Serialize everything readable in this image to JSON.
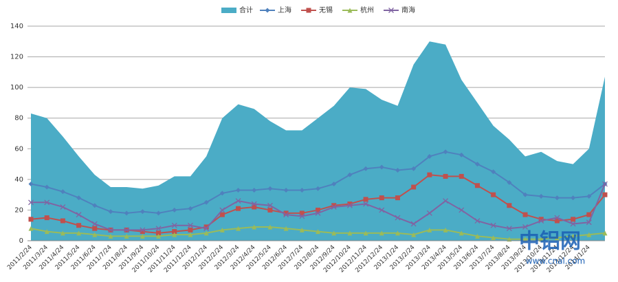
{
  "chart_data": {
    "type": "line",
    "categories": [
      "2011/2/24",
      "2011/3/24",
      "2011/4/24",
      "2011/5/24",
      "2011/6/24",
      "2011/7/24",
      "2011/8/24",
      "2011/9/24",
      "2011/10/24",
      "2011/11/24",
      "2011/12/24",
      "2012/1/24",
      "2012/2/24",
      "2012/3/24",
      "2012/4/24",
      "2012/5/24",
      "2012/6/24",
      "2012/7/24",
      "2012/8/24",
      "2012/9/24",
      "2012/10/24",
      "2012/11/24",
      "2012/12/24",
      "2013/1/24",
      "2013/2/24",
      "2013/3/24",
      "2013/4/24",
      "2013/5/24",
      "2013/6/24",
      "2013/7/24",
      "2013/8/24",
      "2013/9/24",
      "2013/10/24",
      "2013/11/24",
      "2013/12/24",
      "2014/1/24",
      null
    ],
    "series": [
      {
        "name": "合计",
        "kind": "area",
        "color": "#4bacc6",
        "values": [
          83,
          80,
          68,
          55,
          43,
          35,
          35,
          34,
          36,
          42,
          42,
          55,
          80,
          89,
          86,
          78,
          72,
          72,
          80,
          88,
          100,
          99,
          92,
          88,
          115,
          130,
          128,
          105,
          90,
          75,
          66,
          55,
          58,
          52,
          50,
          60,
          107
        ]
      },
      {
        "name": "上海",
        "kind": "line",
        "marker": "diamond",
        "color": "#4f81bd",
        "values": [
          37,
          35,
          32,
          28,
          23,
          19,
          18,
          19,
          18,
          20,
          21,
          25,
          31,
          33,
          33,
          34,
          33,
          33,
          34,
          37,
          43,
          47,
          48,
          46,
          47,
          55,
          58,
          56,
          50,
          45,
          38,
          30,
          29,
          28,
          28,
          29,
          37
        ]
      },
      {
        "name": "无锡",
        "kind": "line",
        "marker": "square",
        "color": "#c0504d",
        "values": [
          14,
          15,
          13,
          10,
          8,
          7,
          7,
          6,
          5,
          6,
          7,
          9,
          17,
          21,
          22,
          20,
          18,
          18,
          20,
          23,
          24,
          27,
          28,
          28,
          35,
          43,
          42,
          42,
          36,
          30,
          23,
          17,
          14,
          13,
          14,
          17,
          30
        ]
      },
      {
        "name": "杭州",
        "kind": "line",
        "marker": "triangle",
        "color": "#9bbb59",
        "values": [
          8,
          6,
          5,
          5,
          4,
          3,
          3,
          3,
          3,
          4,
          4,
          5,
          7,
          8,
          9,
          9,
          8,
          7,
          6,
          5,
          5,
          5,
          5,
          5,
          4,
          7,
          7,
          5,
          3,
          2,
          1,
          1,
          1,
          2,
          3,
          4,
          5
        ]
      },
      {
        "name": "南海",
        "kind": "line",
        "marker": "x",
        "color": "#8064a2",
        "values": [
          25,
          25,
          22,
          17,
          11,
          7,
          7,
          7,
          8,
          10,
          10,
          8,
          20,
          26,
          24,
          23,
          17,
          16,
          18,
          22,
          23,
          24,
          20,
          15,
          11,
          18,
          26,
          20,
          13,
          10,
          8,
          9,
          13,
          15,
          11,
          12,
          37
        ]
      }
    ],
    "ylim": [
      0,
      140
    ],
    "yticks": [
      0,
      20,
      40,
      60,
      80,
      100,
      120,
      140
    ],
    "grid": true,
    "legend": "top",
    "watermark": [
      "中铝网",
      "www.cnal.com"
    ]
  }
}
